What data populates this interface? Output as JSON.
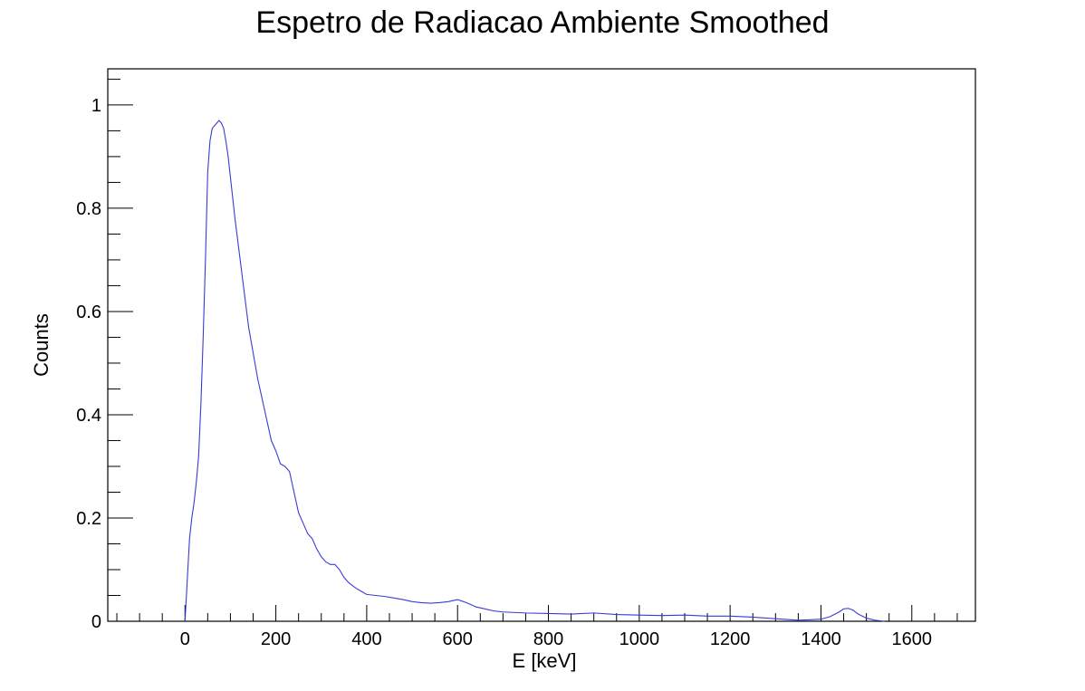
{
  "chart_data": {
    "type": "line",
    "title": "Espetro de Radiacao Ambiente Smoothed",
    "xlabel": "E [keV]",
    "ylabel": "Counts",
    "xlim": [
      -170,
      1740
    ],
    "ylim": [
      0,
      1.07
    ],
    "xticks": [
      0,
      200,
      400,
      600,
      800,
      1000,
      1200,
      1400,
      1600
    ],
    "xtick_labels": [
      "0",
      "200",
      "400",
      "600",
      "800",
      "1000",
      "1200",
      "1400",
      "1600"
    ],
    "yticks": [
      0,
      0.2,
      0.4,
      0.6,
      0.8,
      1
    ],
    "ytick_labels": [
      "0",
      "0.2",
      "0.4",
      "0.6",
      "0.8",
      "1"
    ],
    "grid": false,
    "series": [
      {
        "color": "#3b3bd4",
        "x": [
          0,
          5,
          10,
          15,
          20,
          25,
          30,
          35,
          40,
          45,
          50,
          55,
          60,
          65,
          70,
          75,
          80,
          85,
          90,
          95,
          100,
          110,
          120,
          130,
          140,
          150,
          160,
          170,
          180,
          190,
          200,
          210,
          220,
          230,
          240,
          250,
          260,
          270,
          280,
          290,
          300,
          310,
          320,
          330,
          340,
          350,
          360,
          370,
          380,
          390,
          400,
          420,
          440,
          460,
          480,
          500,
          520,
          540,
          560,
          580,
          600,
          620,
          640,
          660,
          680,
          700,
          750,
          800,
          850,
          900,
          950,
          1000,
          1050,
          1100,
          1150,
          1200,
          1250,
          1300,
          1350,
          1400,
          1420,
          1440,
          1450,
          1460,
          1470,
          1480,
          1500,
          1520,
          1540
        ],
        "y": [
          0.0,
          0.08,
          0.16,
          0.2,
          0.23,
          0.27,
          0.32,
          0.42,
          0.55,
          0.7,
          0.87,
          0.93,
          0.955,
          0.96,
          0.965,
          0.97,
          0.965,
          0.955,
          0.93,
          0.9,
          0.86,
          0.78,
          0.71,
          0.64,
          0.57,
          0.52,
          0.47,
          0.43,
          0.39,
          0.35,
          0.33,
          0.305,
          0.3,
          0.29,
          0.25,
          0.21,
          0.19,
          0.17,
          0.16,
          0.14,
          0.125,
          0.115,
          0.11,
          0.11,
          0.1,
          0.085,
          0.075,
          0.068,
          0.062,
          0.057,
          0.052,
          0.05,
          0.048,
          0.045,
          0.042,
          0.038,
          0.036,
          0.035,
          0.036,
          0.038,
          0.042,
          0.036,
          0.028,
          0.024,
          0.02,
          0.018,
          0.016,
          0.015,
          0.014,
          0.016,
          0.013,
          0.012,
          0.011,
          0.012,
          0.01,
          0.01,
          0.008,
          0.005,
          0.002,
          0.004,
          0.009,
          0.018,
          0.024,
          0.025,
          0.022,
          0.015,
          0.006,
          0.002,
          0.0
        ]
      }
    ]
  }
}
